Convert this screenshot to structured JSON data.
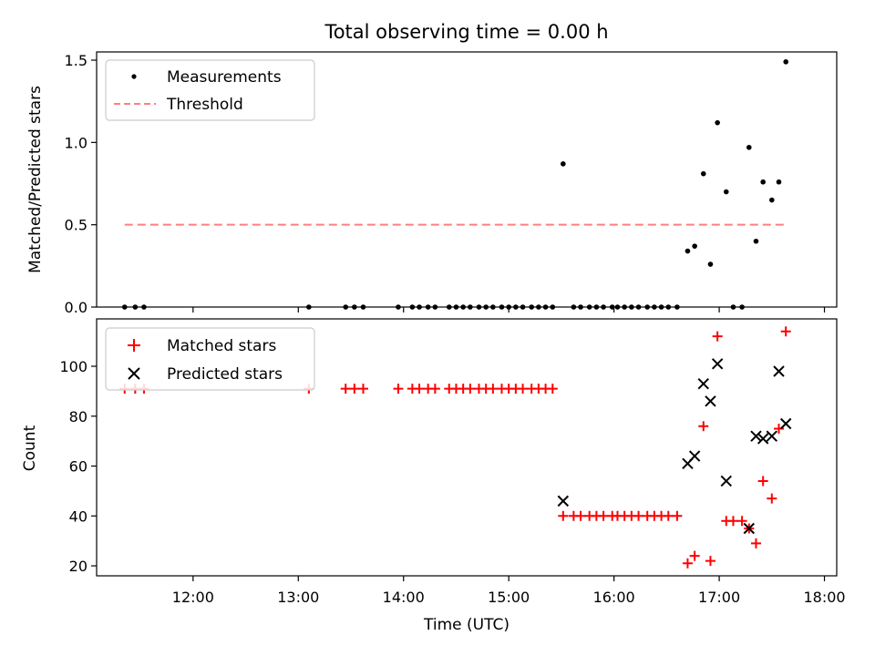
{
  "chart_data": [
    {
      "type": "scatter",
      "title": "Total observing time = 0.00 h",
      "xlabel": "",
      "ylabel": "Matched/Predicted stars",
      "ylim": [
        0,
        1.55
      ],
      "y_ticks": [
        {
          "value": 0.0,
          "label": "0.0"
        },
        {
          "value": 0.5,
          "label": "0.5"
        },
        {
          "value": 1.0,
          "label": "1.0"
        },
        {
          "value": 1.5,
          "label": "1.5"
        }
      ],
      "x_range_utc": [
        "11:05",
        "18:07"
      ],
      "grid": false,
      "legend": {
        "placement": "top-left"
      },
      "series": [
        {
          "name": "Measurements",
          "color": "#000000",
          "marker": "dot",
          "points": [
            [
              "11:21",
              0
            ],
            [
              "11:27",
              0
            ],
            [
              "11:32",
              0
            ],
            [
              "13:06",
              0
            ],
            [
              "13:27",
              0
            ],
            [
              "13:32",
              0
            ],
            [
              "13:37",
              0
            ],
            [
              "13:57",
              0
            ],
            [
              "14:05",
              0
            ],
            [
              "14:09",
              0
            ],
            [
              "14:14",
              0
            ],
            [
              "14:18",
              0
            ],
            [
              "14:26",
              0
            ],
            [
              "14:30",
              0
            ],
            [
              "14:34",
              0
            ],
            [
              "14:38",
              0
            ],
            [
              "14:43",
              0
            ],
            [
              "14:47",
              0
            ],
            [
              "14:51",
              0
            ],
            [
              "14:56",
              0
            ],
            [
              "15:00",
              0
            ],
            [
              "15:04",
              0
            ],
            [
              "15:08",
              0
            ],
            [
              "15:13",
              0
            ],
            [
              "15:17",
              0
            ],
            [
              "15:21",
              0
            ],
            [
              "15:25",
              0
            ],
            [
              "15:31",
              0.87
            ],
            [
              "15:37",
              0
            ],
            [
              "15:41",
              0
            ],
            [
              "15:46",
              0
            ],
            [
              "15:50",
              0
            ],
            [
              "15:54",
              0
            ],
            [
              "15:59",
              0
            ],
            [
              "16:02",
              0
            ],
            [
              "16:06",
              0
            ],
            [
              "16:10",
              0
            ],
            [
              "16:14",
              0
            ],
            [
              "16:19",
              0
            ],
            [
              "16:23",
              0
            ],
            [
              "16:27",
              0
            ],
            [
              "16:31",
              0
            ],
            [
              "16:36",
              0
            ],
            [
              "16:42",
              0.34
            ],
            [
              "16:46",
              0.37
            ],
            [
              "16:51",
              0.81
            ],
            [
              "16:55",
              0.26
            ],
            [
              "16:59",
              1.12
            ],
            [
              "17:04",
              0.7
            ],
            [
              "17:08",
              0
            ],
            [
              "17:13",
              0
            ],
            [
              "17:17",
              0.97
            ],
            [
              "17:21",
              0.4
            ],
            [
              "17:25",
              0.76
            ],
            [
              "17:30",
              0.65
            ],
            [
              "17:34",
              0.76
            ],
            [
              "17:38",
              1.49
            ]
          ]
        },
        {
          "name": "Threshold",
          "color": "#ff7f7f",
          "style": "dashed",
          "x": [
            "11:21",
            "17:38"
          ],
          "y": [
            0.5,
            0.5
          ]
        }
      ]
    },
    {
      "type": "scatter",
      "title": "",
      "xlabel": "Time (UTC)",
      "ylabel": "Count",
      "ylim": [
        16,
        119
      ],
      "y_ticks": [
        {
          "value": 20,
          "label": "20"
        },
        {
          "value": 40,
          "label": "40"
        },
        {
          "value": 60,
          "label": "60"
        },
        {
          "value": 80,
          "label": "80"
        },
        {
          "value": 100,
          "label": "100"
        }
      ],
      "x_range_utc": [
        "11:05",
        "18:07"
      ],
      "x_ticks": [
        "12:00",
        "13:00",
        "14:00",
        "15:00",
        "16:00",
        "17:00",
        "18:00"
      ],
      "grid": false,
      "legend": {
        "placement": "top-left"
      },
      "series": [
        {
          "name": "Matched stars",
          "color": "#ff0000",
          "marker": "plus",
          "points": [
            [
              "11:21",
              91
            ],
            [
              "11:27",
              91
            ],
            [
              "11:32",
              91
            ],
            [
              "13:06",
              91
            ],
            [
              "13:27",
              91
            ],
            [
              "13:32",
              91
            ],
            [
              "13:37",
              91
            ],
            [
              "13:57",
              91
            ],
            [
              "14:05",
              91
            ],
            [
              "14:09",
              91
            ],
            [
              "14:14",
              91
            ],
            [
              "14:18",
              91
            ],
            [
              "14:26",
              91
            ],
            [
              "14:30",
              91
            ],
            [
              "14:34",
              91
            ],
            [
              "14:38",
              91
            ],
            [
              "14:43",
              91
            ],
            [
              "14:47",
              91
            ],
            [
              "14:51",
              91
            ],
            [
              "14:56",
              91
            ],
            [
              "15:00",
              91
            ],
            [
              "15:04",
              91
            ],
            [
              "15:08",
              91
            ],
            [
              "15:13",
              91
            ],
            [
              "15:17",
              91
            ],
            [
              "15:21",
              91
            ],
            [
              "15:25",
              91
            ],
            [
              "15:31",
              40
            ],
            [
              "15:37",
              40
            ],
            [
              "15:41",
              40
            ],
            [
              "15:46",
              40
            ],
            [
              "15:50",
              40
            ],
            [
              "15:54",
              40
            ],
            [
              "15:59",
              40
            ],
            [
              "16:02",
              40
            ],
            [
              "16:06",
              40
            ],
            [
              "16:10",
              40
            ],
            [
              "16:14",
              40
            ],
            [
              "16:19",
              40
            ],
            [
              "16:23",
              40
            ],
            [
              "16:27",
              40
            ],
            [
              "16:31",
              40
            ],
            [
              "16:36",
              40
            ],
            [
              "16:42",
              21
            ],
            [
              "16:46",
              24
            ],
            [
              "16:51",
              76
            ],
            [
              "16:55",
              22
            ],
            [
              "16:59",
              112
            ],
            [
              "17:04",
              38
            ],
            [
              "17:08",
              38
            ],
            [
              "17:13",
              38
            ],
            [
              "17:17",
              35
            ],
            [
              "17:21",
              29
            ],
            [
              "17:25",
              54
            ],
            [
              "17:30",
              47
            ],
            [
              "17:34",
              75
            ],
            [
              "17:38",
              114
            ]
          ]
        },
        {
          "name": "Predicted stars",
          "color": "#000000",
          "marker": "x",
          "points": [
            [
              "15:31",
              46
            ],
            [
              "16:42",
              61
            ],
            [
              "16:46",
              64
            ],
            [
              "16:51",
              93
            ],
            [
              "16:55",
              86
            ],
            [
              "16:59",
              101
            ],
            [
              "17:04",
              54
            ],
            [
              "17:17",
              35
            ],
            [
              "17:21",
              72
            ],
            [
              "17:25",
              71
            ],
            [
              "17:30",
              72
            ],
            [
              "17:34",
              98
            ],
            [
              "17:38",
              77
            ]
          ]
        }
      ]
    }
  ]
}
